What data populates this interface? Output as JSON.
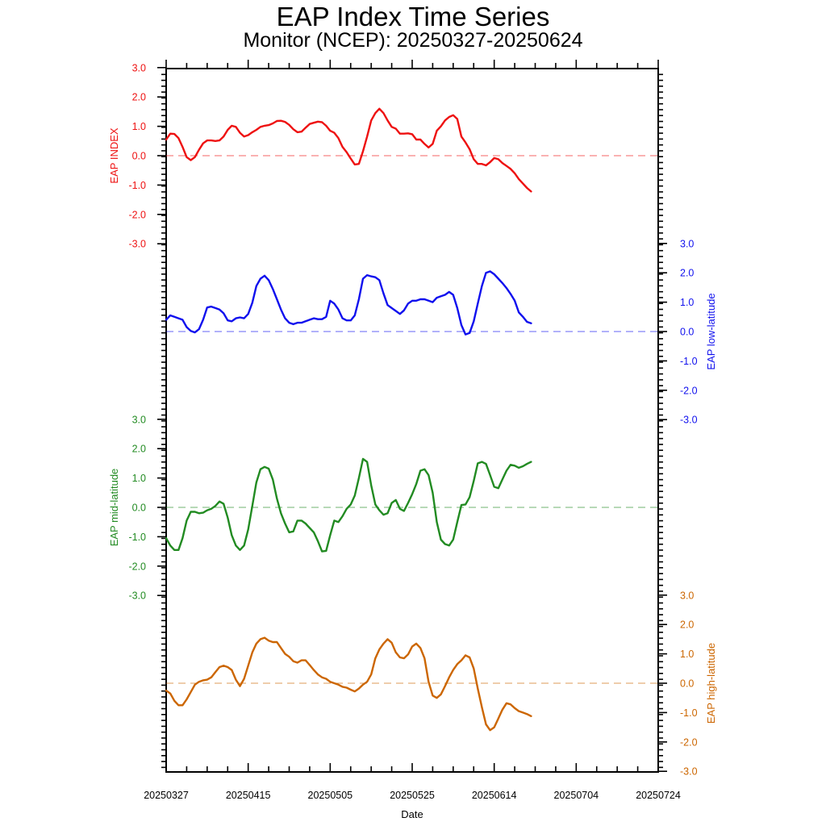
{
  "title": "EAP Index Time Series",
  "subtitle": "Monitor (NCEP): 20250327-20250624",
  "chart_data": {
    "type": "line",
    "xlabel": "Date",
    "x_tick_labels": [
      "20250327",
      "20250415",
      "20250505",
      "20250525",
      "20250614",
      "20250704",
      "20250724"
    ],
    "x_tick_days": [
      0,
      20,
      40,
      60,
      80,
      100,
      120
    ],
    "x_range_days": [
      0,
      120
    ],
    "y_tick_labels": [
      "3.0",
      "2.0",
      "1.0",
      "0.0",
      "-1.0",
      "-2.0",
      "-3.0"
    ],
    "panels": [
      {
        "name": "EAP INDEX",
        "ylabel": "EAP INDEX",
        "axis_side": "left",
        "color": "#ee1111",
        "ylim": [
          -3,
          3
        ],
        "values": [
          0.55,
          0.75,
          0.74,
          0.6,
          0.3,
          -0.05,
          -0.15,
          -0.05,
          0.2,
          0.42,
          0.52,
          0.52,
          0.5,
          0.52,
          0.65,
          0.88,
          1.02,
          0.98,
          0.78,
          0.65,
          0.7,
          0.8,
          0.88,
          0.98,
          1.02,
          1.04,
          1.1,
          1.18,
          1.19,
          1.15,
          1.05,
          0.9,
          0.8,
          0.82,
          0.95,
          1.08,
          1.12,
          1.16,
          1.14,
          1.02,
          0.85,
          0.78,
          0.6,
          0.3,
          0.12,
          -0.1,
          -0.3,
          -0.28,
          0.15,
          0.65,
          1.2,
          1.45,
          1.6,
          1.45,
          1.2,
          0.98,
          0.92,
          0.75,
          0.75,
          0.76,
          0.73,
          0.55,
          0.55,
          0.4,
          0.28,
          0.4,
          0.85,
          1.0,
          1.2,
          1.32,
          1.38,
          1.25,
          0.65,
          0.45,
          0.22,
          -0.12,
          -0.28,
          -0.28,
          -0.33,
          -0.22,
          -0.08,
          -0.12,
          -0.25,
          -0.35,
          -0.45,
          -0.6,
          -0.8,
          -0.95,
          -1.1,
          -1.22
        ]
      },
      {
        "name": "EAP low-latitude",
        "ylabel": "EAP low-latitude",
        "axis_side": "right",
        "color": "#1010ee",
        "ylim": [
          -3,
          3
        ],
        "values": [
          0.4,
          0.55,
          0.5,
          0.45,
          0.4,
          0.15,
          0.02,
          -0.03,
          0.08,
          0.4,
          0.82,
          0.85,
          0.8,
          0.75,
          0.62,
          0.38,
          0.35,
          0.45,
          0.48,
          0.45,
          0.6,
          0.98,
          1.55,
          1.8,
          1.9,
          1.75,
          1.45,
          1.1,
          0.75,
          0.45,
          0.3,
          0.25,
          0.3,
          0.3,
          0.35,
          0.4,
          0.45,
          0.42,
          0.42,
          0.5,
          1.05,
          0.95,
          0.75,
          0.45,
          0.38,
          0.38,
          0.55,
          1.1,
          1.8,
          1.92,
          1.88,
          1.85,
          1.75,
          1.3,
          0.9,
          0.8,
          0.7,
          0.6,
          0.72,
          0.95,
          1.05,
          1.05,
          1.1,
          1.1,
          1.05,
          1.0,
          1.15,
          1.2,
          1.25,
          1.35,
          1.25,
          0.8,
          0.22,
          -0.1,
          -0.05,
          0.35,
          0.95,
          1.55,
          2.0,
          2.05,
          1.95,
          1.8,
          1.65,
          1.48,
          1.28,
          1.05,
          0.65,
          0.5,
          0.33,
          0.28
        ]
      },
      {
        "name": "EAP mid-latitude",
        "ylabel": "EAP mid-latitude",
        "axis_side": "left",
        "color": "#228b22",
        "ylim": [
          -3,
          3
        ],
        "values": [
          -1.05,
          -1.3,
          -1.45,
          -1.45,
          -1.05,
          -0.45,
          -0.15,
          -0.15,
          -0.2,
          -0.18,
          -0.1,
          -0.05,
          0.05,
          0.2,
          0.12,
          -0.35,
          -0.95,
          -1.3,
          -1.45,
          -1.3,
          -0.75,
          0.05,
          0.85,
          1.3,
          1.38,
          1.32,
          0.95,
          0.3,
          -0.2,
          -0.55,
          -0.85,
          -0.82,
          -0.45,
          -0.45,
          -0.55,
          -0.7,
          -0.85,
          -1.15,
          -1.5,
          -1.48,
          -0.95,
          -0.45,
          -0.5,
          -0.3,
          -0.05,
          0.1,
          0.4,
          1.0,
          1.65,
          1.55,
          0.75,
          0.1,
          -0.1,
          -0.25,
          -0.2,
          0.15,
          0.25,
          -0.05,
          -0.12,
          0.15,
          0.45,
          0.8,
          1.25,
          1.3,
          1.1,
          0.5,
          -0.5,
          -1.1,
          -1.25,
          -1.3,
          -1.1,
          -0.5,
          0.08,
          0.1,
          0.35,
          0.9,
          1.5,
          1.55,
          1.48,
          1.1,
          0.7,
          0.65,
          0.95,
          1.25,
          1.45,
          1.42,
          1.35,
          1.4,
          1.48,
          1.55
        ]
      },
      {
        "name": "EAP high-latitude",
        "ylabel": "EAP high-latitude",
        "axis_side": "right",
        "color": "#cc6600",
        "ylim": [
          -3,
          3
        ],
        "values": [
          -0.25,
          -0.35,
          -0.6,
          -0.75,
          -0.75,
          -0.55,
          -0.3,
          -0.05,
          0.05,
          0.1,
          0.12,
          0.2,
          0.38,
          0.55,
          0.6,
          0.55,
          0.45,
          0.12,
          -0.1,
          0.15,
          0.6,
          1.05,
          1.35,
          1.5,
          1.55,
          1.45,
          1.4,
          1.4,
          1.2,
          1.0,
          0.9,
          0.75,
          0.7,
          0.78,
          0.78,
          0.62,
          0.45,
          0.3,
          0.2,
          0.15,
          0.05,
          0.0,
          -0.05,
          -0.12,
          -0.15,
          -0.22,
          -0.28,
          -0.18,
          -0.05,
          0.05,
          0.3,
          0.85,
          1.15,
          1.35,
          1.5,
          1.38,
          1.05,
          0.88,
          0.85,
          0.98,
          1.25,
          1.35,
          1.2,
          0.85,
          0.05,
          -0.42,
          -0.5,
          -0.38,
          -0.1,
          0.2,
          0.45,
          0.65,
          0.78,
          0.95,
          0.88,
          0.5,
          -0.18,
          -0.82,
          -1.4,
          -1.6,
          -1.5,
          -1.2,
          -0.9,
          -0.68,
          -0.72,
          -0.85,
          -0.95,
          -1.0,
          -1.05,
          -1.12
        ]
      }
    ]
  }
}
